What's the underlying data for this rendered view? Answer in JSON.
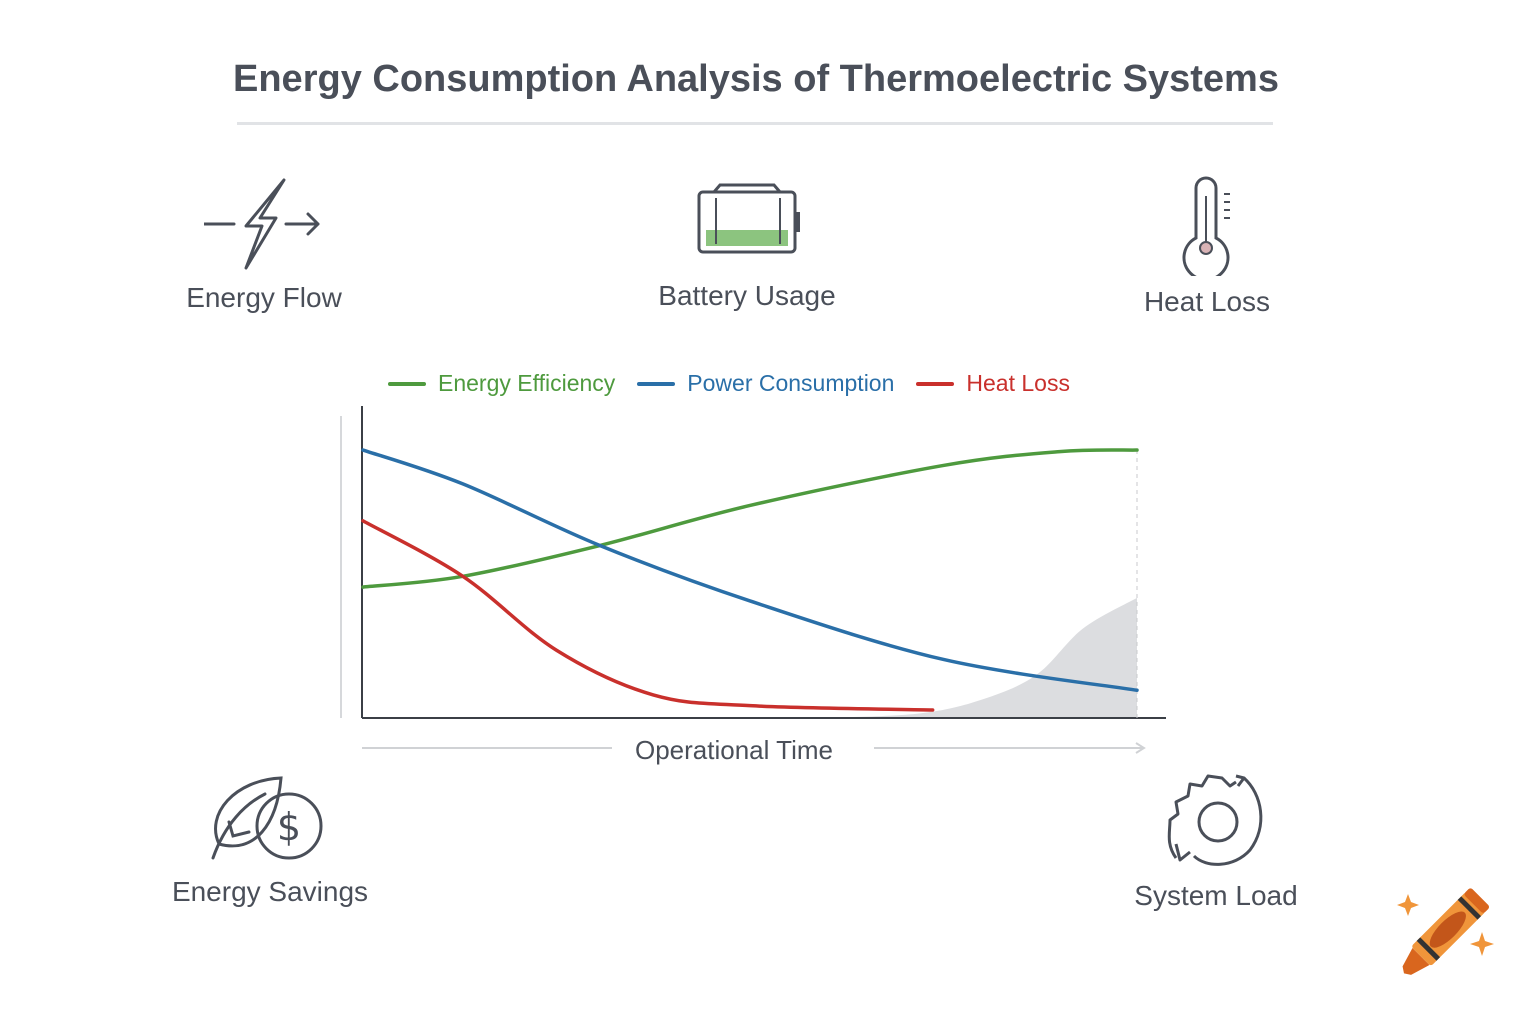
{
  "title": "Energy Consumption Analysis of Thermoelectric Systems",
  "features": [
    {
      "label": "Energy Flow",
      "icon": "lightning-arrow-icon"
    },
    {
      "label": "Battery Usage",
      "icon": "battery-icon"
    },
    {
      "label": "Heat Loss",
      "icon": "thermometer-icon"
    },
    {
      "label": "Energy Savings",
      "icon": "leaf-dollar-icon"
    },
    {
      "label": "System Load",
      "icon": "gear-cycle-icon"
    }
  ],
  "chart_data": {
    "type": "line",
    "title": "",
    "xlabel": "Operational Time",
    "ylabel": "",
    "xlim": [
      0,
      100
    ],
    "ylim": [
      0,
      100
    ],
    "grid": false,
    "legend": "top",
    "series": [
      {
        "name": "Energy Efficiency",
        "color": "#4e9a3e",
        "x": [
          0,
          12.9,
          30.6,
          50,
          75,
          90,
          100
        ],
        "y": [
          42.5,
          46,
          56,
          69,
          82,
          86.5,
          87
        ]
      },
      {
        "name": "Power Consumption",
        "color": "#2a6fa8",
        "x": [
          0,
          12.9,
          30.6,
          50,
          75,
          100
        ],
        "y": [
          87,
          76,
          56,
          38,
          19,
          9
        ]
      },
      {
        "name": "Heat Loss",
        "color": "#c9302c",
        "x": [
          0,
          12.9,
          25,
          37.5,
          50,
          73.6
        ],
        "y": [
          64,
          46,
          22,
          7.5,
          4,
          2.6
        ]
      }
    ],
    "shaded_area": {
      "color": "#dcdde0",
      "x": [
        60,
        72,
        80,
        87,
        93,
        100
      ],
      "y": [
        0,
        1.5,
        6,
        14,
        29,
        39
      ]
    }
  }
}
